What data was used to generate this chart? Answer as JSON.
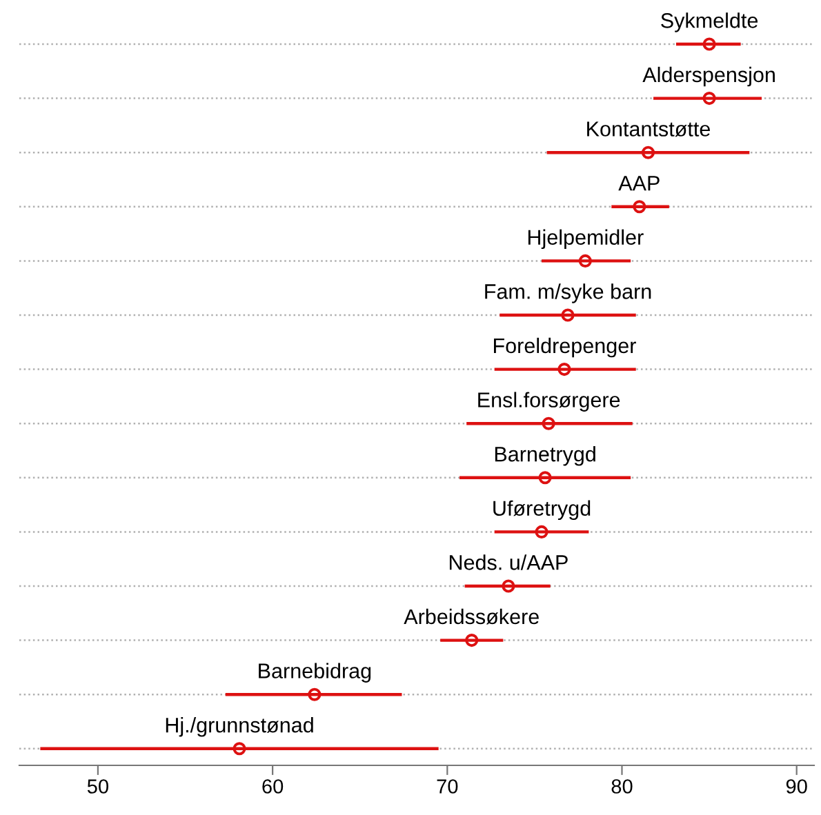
{
  "chart_data": {
    "type": "scatter",
    "orientation": "horizontal",
    "color": "#dd1111",
    "marker": "circle",
    "grid": "y",
    "line_style": "dotted",
    "categories": [
      "Sykmeldte",
      "Alderspensjon",
      "Kontantstøtte",
      "AAP",
      "Hjelpemidler",
      "Fam. m/syke barn",
      "Foreldrepenger",
      "Ensl.forsørgere",
      "Barnetrygd",
      "Uføretrygd",
      "Neds. u/AAP",
      "Arbeidssøkere",
      "Barnebidrag",
      "Hj./grunnstønad"
    ],
    "values": [
      85.0,
      85.0,
      81.5,
      81.0,
      77.9,
      76.9,
      76.7,
      75.8,
      75.6,
      75.4,
      73.5,
      71.4,
      62.4,
      58.1
    ],
    "errors": [
      [
        83.1,
        86.8
      ],
      [
        81.8,
        88.0
      ],
      [
        75.7,
        87.3
      ],
      [
        79.4,
        82.7
      ],
      [
        75.4,
        80.5
      ],
      [
        73.0,
        80.8
      ],
      [
        72.7,
        80.8
      ],
      [
        71.1,
        80.6
      ],
      [
        70.7,
        80.5
      ],
      [
        72.7,
        78.1
      ],
      [
        71.0,
        75.9
      ],
      [
        69.6,
        73.2
      ],
      [
        57.3,
        67.4
      ],
      [
        46.7,
        69.5
      ]
    ],
    "xlim": [
      45.5,
      91
    ],
    "xticks": [
      50,
      60,
      70,
      80,
      90
    ]
  }
}
